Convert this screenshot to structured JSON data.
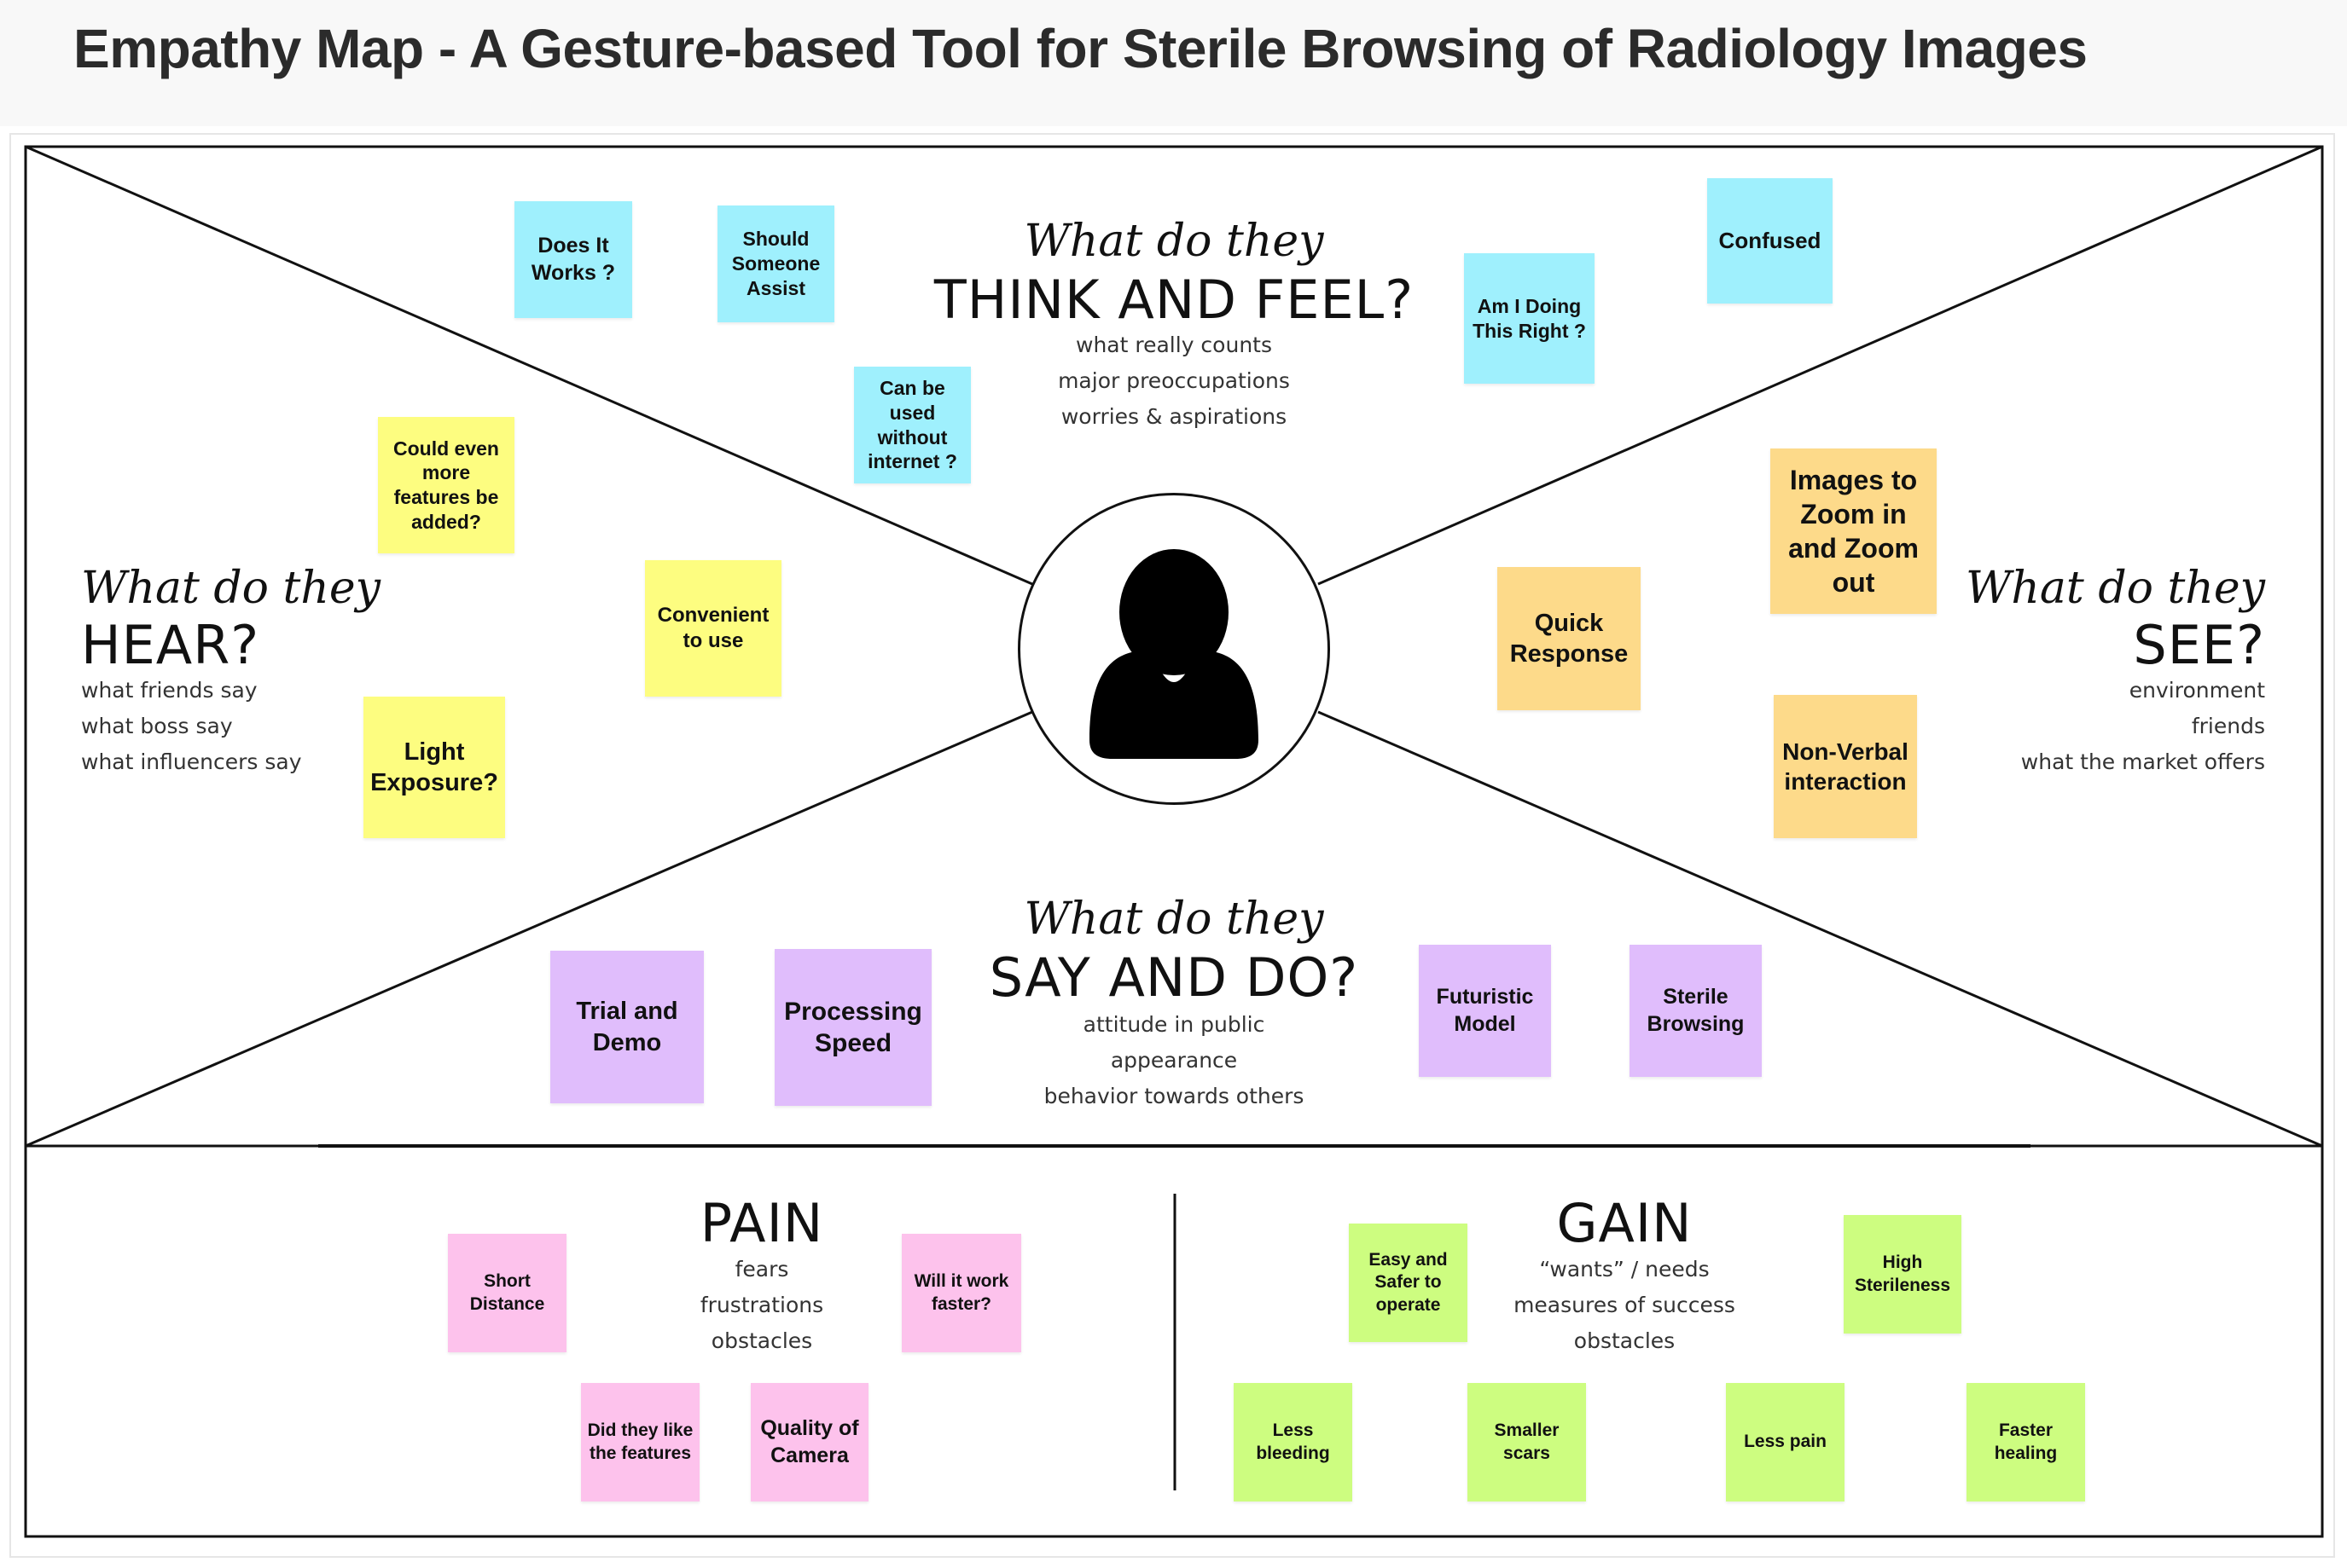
{
  "title": "Empathy Map - A Gesture-based Tool for Sterile Browsing of Radiology Images",
  "sections": {
    "think_feel": {
      "script": "What do they",
      "heading": "THINK AND FEEL?",
      "lines": [
        "what really counts",
        "major preoccupations",
        "worries & aspirations"
      ]
    },
    "hear": {
      "script": "What do they",
      "heading": "HEAR?",
      "lines": [
        "what friends say",
        "what boss say",
        "what influencers say"
      ]
    },
    "see": {
      "script": "What do they",
      "heading": "SEE?",
      "lines": [
        "environment",
        "friends",
        "what the market offers"
      ]
    },
    "say_do": {
      "script": "What do they",
      "heading": "SAY AND DO?",
      "lines": [
        "attitude in public",
        "appearance",
        "behavior towards others"
      ]
    },
    "pain": {
      "heading": "PAIN",
      "lines": [
        "fears",
        "frustrations",
        "obstacles"
      ]
    },
    "gain": {
      "heading": "GAIN",
      "lines": [
        "“wants” / needs",
        "measures of success",
        "obstacles"
      ]
    }
  },
  "notes": {
    "think_feel": [
      "Does It Works ?",
      "Should Someone Assist",
      "Can be used without internet ?",
      "Am I Doing This Right ?",
      "Confused"
    ],
    "hear": [
      "Could even more features be added?",
      "Convenient to use",
      "Light Exposure?"
    ],
    "see": [
      "Images to Zoom in and Zoom out",
      "Quick Response",
      "Non-Verbal interaction"
    ],
    "say_do": [
      "Trial and Demo",
      "Processing Speed",
      "Futuristic Model",
      "Sterile Browsing"
    ],
    "pain": [
      "Short Distance",
      "Will it work faster?",
      "Did they like the features",
      "Quality of Camera"
    ],
    "gain": [
      "Easy and Safer to operate",
      "High Sterileness",
      "Less bleeding",
      "Smaller scars",
      "Less pain",
      "Faster healing"
    ]
  },
  "colors": {
    "think_feel": "#9ff0fd",
    "hear": "#fdfd80",
    "see": "#fdda8a",
    "say_do": "#e0bdfc",
    "pain": "#fdc2ec",
    "gain": "#cdfd80"
  },
  "icons": {
    "persona": "person-silhouette-icon"
  }
}
